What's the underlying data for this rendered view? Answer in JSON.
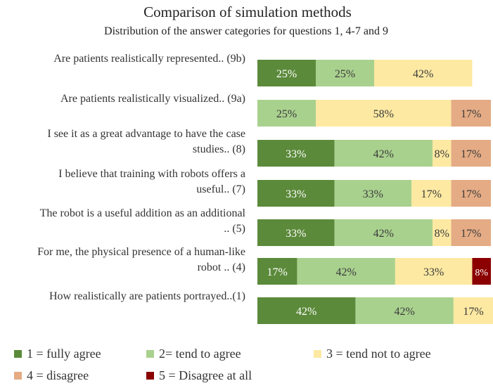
{
  "chart_data": {
    "type": "bar",
    "orientation": "horizontal",
    "stacked": true,
    "title": "Comparison of simulation methods",
    "subtitle": "Distribution of the answer categories for questions 1, 4-7 and 9",
    "xlabel": "",
    "ylabel": "",
    "xlim": [
      0,
      100
    ],
    "grid": false,
    "legend_position": "bottom",
    "categories": [
      [
        "Are patients realistically represented.. (9b)"
      ],
      [
        "Are patients realistically visualized.. (9a)"
      ],
      [
        "I see it as a great advantage to have the case",
        "studies.. (8)"
      ],
      [
        "I believe that training with robots offers a",
        "useful.. (7)"
      ],
      [
        "The robot is a useful addition as an additional",
        ".. (5)"
      ],
      [
        "For me, the physical presence of a human-like",
        "robot .. (4)"
      ],
      [
        "How realistically are patients portrayed..(1)"
      ]
    ],
    "series": [
      {
        "name": "1 = fully agree",
        "color": "#5b8a3a",
        "values": [
          25,
          0,
          33,
          33,
          33,
          17,
          42
        ],
        "labels": [
          "25%",
          "",
          "33%",
          "33%",
          "33%",
          "17%",
          "42%"
        ]
      },
      {
        "name": "2= tend to agree",
        "color": "#a9d18e",
        "values": [
          25,
          25,
          42,
          33,
          42,
          42,
          42
        ],
        "labels": [
          "25%",
          "25%",
          "42%",
          "33%",
          "42%",
          "42%",
          "42%"
        ]
      },
      {
        "name": "3 = tend not to agree",
        "color": "#fde9a2",
        "values": [
          42,
          58,
          8,
          17,
          8,
          33,
          17
        ],
        "labels": [
          "42%",
          "58%",
          "8%",
          "17%",
          "8%",
          "33%",
          "17%"
        ]
      },
      {
        "name": "4 = disagree",
        "color": "#e4ab84",
        "values": [
          0,
          17,
          17,
          17,
          17,
          0,
          0
        ],
        "labels": [
          "",
          "17%",
          "17%",
          "17%",
          "17%",
          "",
          ""
        ]
      },
      {
        "name": "5 = Disagree at all",
        "color": "#8b0000",
        "values": [
          0,
          0,
          0,
          0,
          0,
          8,
          0
        ],
        "labels": [
          "",
          "",
          "",
          "",
          "",
          "8%",
          ""
        ]
      }
    ]
  }
}
